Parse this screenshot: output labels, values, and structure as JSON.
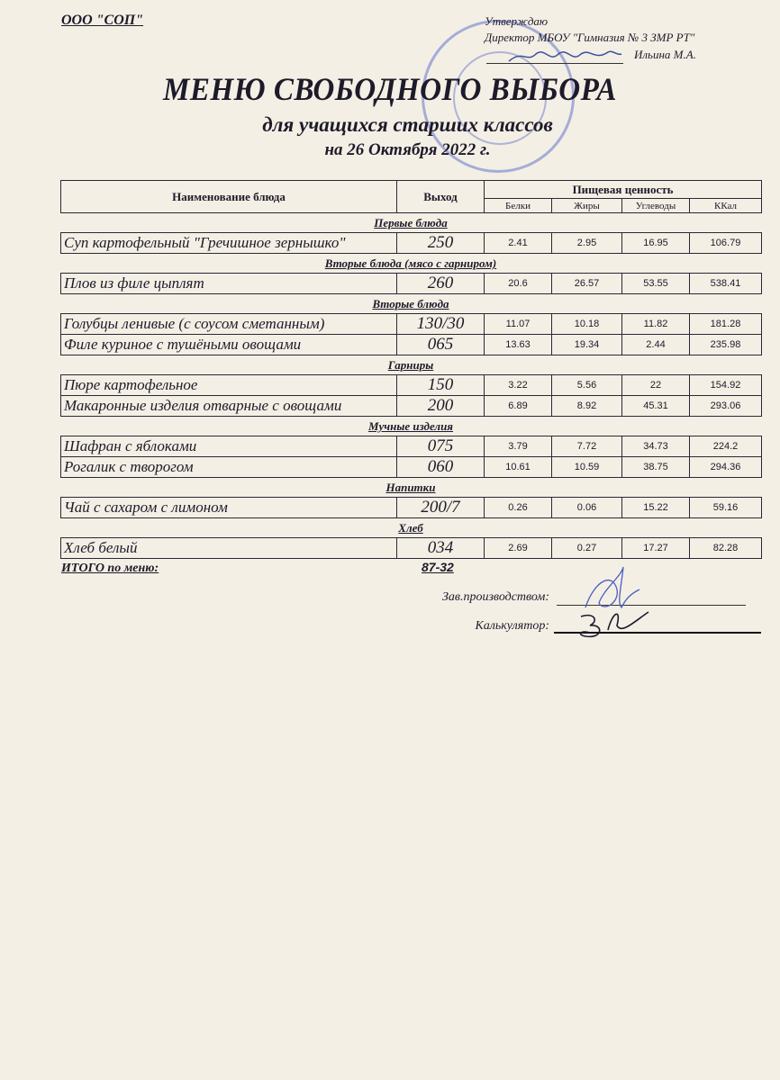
{
  "header": {
    "organization": "ООО \"СОП\"",
    "approval": {
      "line1": "Утверждаю",
      "line2": "Директор МБОУ \"Гимназия № 3 ЗМР РТ\"",
      "line3": "Ильина М.А."
    },
    "title": "МЕНЮ СВОБОДНОГО ВЫБОРА",
    "subtitle": "для учащихся старших классов",
    "date": "на 26 Октября 2022 г."
  },
  "table": {
    "headers": {
      "name": "Наименование блюда",
      "yield": "Выход",
      "nutrition": "Пищевая ценность",
      "protein": "Белки",
      "fat": "Жиры",
      "carbs": "Углеводы",
      "kcal": "ККал"
    },
    "sections": [
      {
        "title": "Первые блюда",
        "rows": [
          {
            "name": "Суп картофельный \"Гречишное зернышко\"",
            "yield": "250",
            "protein": "2.41",
            "fat": "2.95",
            "carbs": "16.95",
            "kcal": "106.79"
          }
        ]
      },
      {
        "title": "Вторые блюда (мясо с гарниром)",
        "rows": [
          {
            "name": "Плов из филе цыплят",
            "yield": "260",
            "protein": "20.6",
            "fat": "26.57",
            "carbs": "53.55",
            "kcal": "538.41"
          }
        ]
      },
      {
        "title": "Вторые блюда",
        "rows": [
          {
            "name": "Голубцы ленивые (с соусом сметанным)",
            "yield": "130/30",
            "protein": "11.07",
            "fat": "10.18",
            "carbs": "11.82",
            "kcal": "181.28"
          },
          {
            "name": "Филе куриное с тушёными овощами",
            "yield": "065",
            "protein": "13.63",
            "fat": "19.34",
            "carbs": "2.44",
            "kcal": "235.98"
          }
        ]
      },
      {
        "title": "Гарниры",
        "rows": [
          {
            "name": "Пюре картофельное",
            "yield": "150",
            "protein": "3.22",
            "fat": "5.56",
            "carbs": "22",
            "kcal": "154.92"
          },
          {
            "name": "Макаронные изделия отварные с овощами",
            "yield": "200",
            "protein": "6.89",
            "fat": "8.92",
            "carbs": "45.31",
            "kcal": "293.06"
          }
        ]
      },
      {
        "title": "Мучные изделия",
        "rows": [
          {
            "name": "Шафран с яблоками",
            "yield": "075",
            "protein": "3.79",
            "fat": "7.72",
            "carbs": "34.73",
            "kcal": "224.2"
          },
          {
            "name": "Рогалик с творогом",
            "yield": "060",
            "protein": "10.61",
            "fat": "10.59",
            "carbs": "38.75",
            "kcal": "294.36"
          }
        ]
      },
      {
        "title": "Напитки",
        "rows": [
          {
            "name": "Чай с сахаром с лимоном",
            "yield": "200/7",
            "protein": "0.26",
            "fat": "0.06",
            "carbs": "15.22",
            "kcal": "59.16"
          }
        ]
      },
      {
        "title": "Хлеб",
        "rows": [
          {
            "name": "Хлеб белый",
            "yield": "034",
            "protein": "2.69",
            "fat": "0.27",
            "carbs": "17.27",
            "kcal": "82.28"
          }
        ]
      }
    ]
  },
  "footer": {
    "total_label": "ИТОГО по меню:",
    "total_value": "87-32",
    "production_label": "Зав.производством:",
    "calculator_label": "Калькулятор:"
  },
  "colors": {
    "paper": "#f4efe4",
    "stamp": "#4a5ac8",
    "signature": "#3a4fa0"
  }
}
